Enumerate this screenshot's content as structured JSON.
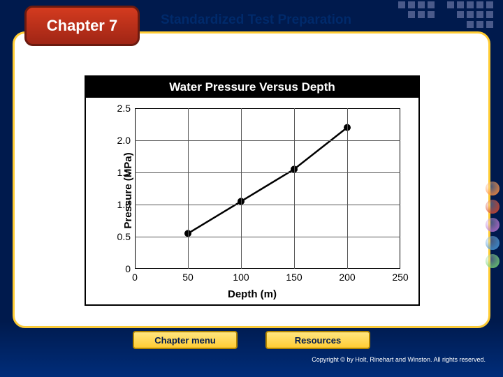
{
  "chapter_label": "Chapter 7",
  "header_title": "Standardized Test Preparation",
  "buttons": {
    "chapter_menu": "Chapter menu",
    "resources": "Resources"
  },
  "copyright": "Copyright © by Holt, Rinehart and Winston. All rights reserved.",
  "deco_circle_colors": [
    "#ff8833",
    "#d43b1f",
    "#b366cc",
    "#3a8fd4",
    "#6bcf6b"
  ],
  "chart": {
    "type": "line",
    "title": "Water Pressure Versus Depth",
    "xlabel": "Depth (m)",
    "ylabel": "Pressure (MPa)",
    "xlim": [
      0,
      250
    ],
    "ylim": [
      0,
      2.5
    ],
    "xticks": [
      0,
      50,
      100,
      150,
      200,
      250
    ],
    "yticks": [
      0,
      0.5,
      1.0,
      1.5,
      2.0,
      2.5
    ],
    "ytick_labels": [
      "0",
      "0.5",
      "1.0",
      "1.5",
      "2.0",
      "2.5"
    ],
    "data_x": [
      50,
      100,
      150,
      200
    ],
    "data_y": [
      0.55,
      1.05,
      1.55,
      2.2
    ],
    "line_color": "#000000",
    "line_width": 2.5,
    "marker_color": "#000000",
    "marker_radius": 5,
    "grid_color": "#555555",
    "background_color": "#ffffff",
    "title_fontsize": 17,
    "label_fontsize": 15,
    "tick_fontsize": 14
  }
}
